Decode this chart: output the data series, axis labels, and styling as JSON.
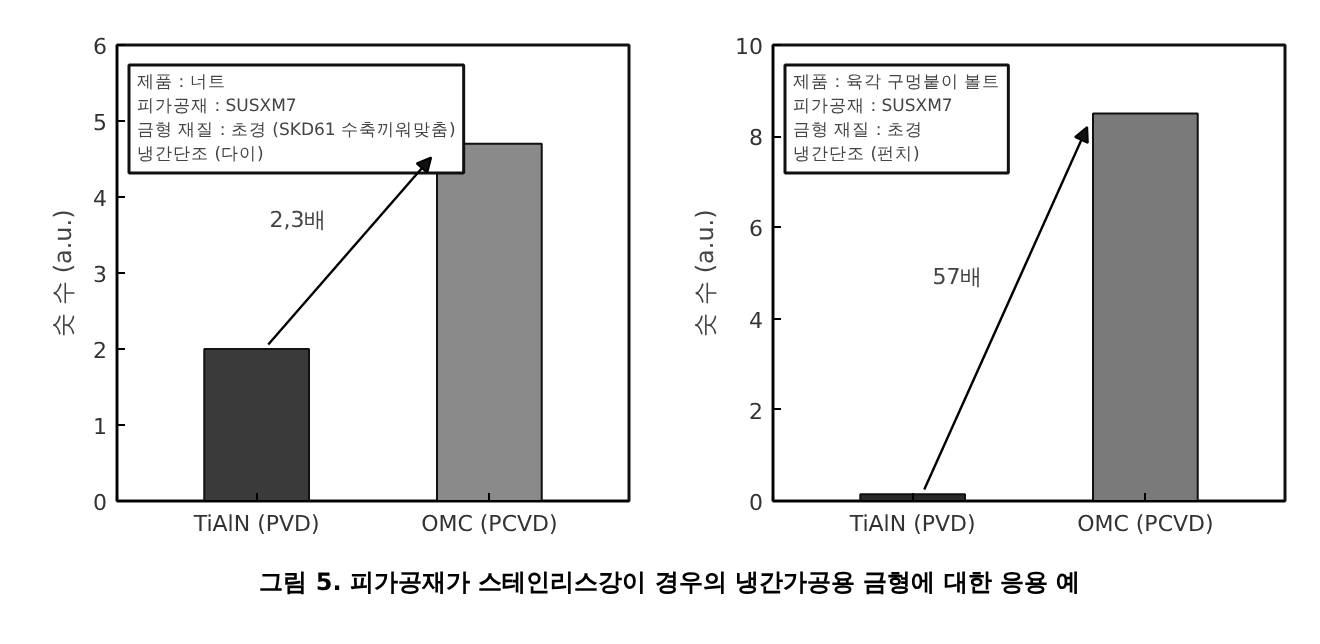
{
  "chart_data": [
    {
      "type": "bar",
      "categories": [
        "TiAlN (PVD)",
        "OMC (PCVD)"
      ],
      "values": [
        2.0,
        4.7
      ],
      "colors": [
        "#3a3a3a",
        "#8a8a8a"
      ],
      "ylabel": "숫 수 (a.u.)",
      "ylim": [
        0,
        6
      ],
      "yticks": [
        0,
        1,
        2,
        3,
        4,
        5,
        6
      ],
      "grid": false,
      "annotations": [
        "제품 : 너트\n피가공재 : SUSXM7\n금형 재질 : 초경 (SKD61 수축끼워맞춤)\n냉간단조 (다이)",
        "2,3배",
        "그림 5. 피가공재가 스테인리스강이 경우의 냉간가공용 금형에 대한 응용 예"
      ]
    },
    {
      "type": "bar",
      "categories": [
        "TiAlN (PVD)",
        "OMC (PCVD)"
      ],
      "values": [
        0.15,
        8.5
      ],
      "colors": [
        "#2a2a2a",
        "#7a7a7a"
      ],
      "ylabel": "숫 수 (a.u.)",
      "ylim": [
        0,
        10
      ],
      "yticks": [
        0,
        2,
        4,
        6,
        8,
        10
      ],
      "grid": false,
      "annotations": [
        "제품 : 육각 구멍붙이 볼트\n피가공재 : SUSXM7\n금형 재질 : 초경\n냉간단조 (펀치)",
        "57배"
      ]
    }
  ]
}
